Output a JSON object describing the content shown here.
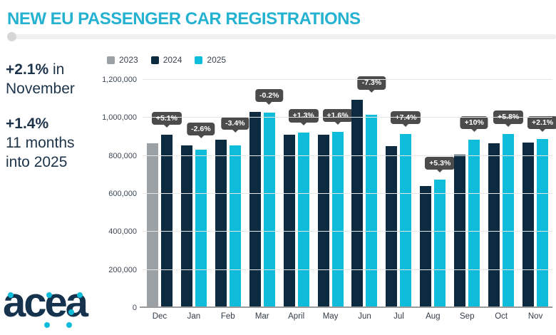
{
  "header": {
    "title": "NEW EU PASSENGER CAR REGISTRATIONS"
  },
  "sidebar": {
    "stats": [
      {
        "bold": "+2.1%",
        "after": " in",
        "line2": "November",
        "line3": ""
      },
      {
        "bold": "+1.4%",
        "after": "",
        "line2": "11 months",
        "line3": "into 2025"
      }
    ]
  },
  "logo": {
    "text": "acea"
  },
  "colors": {
    "title_accent": "#25b2d1",
    "navy": "#0d2b40",
    "cyan": "#0fbcd9",
    "gray": "#9aa0a4",
    "tooltip_bg": "#4b4b4b"
  },
  "chart_data": {
    "type": "bar",
    "title": "NEW EU PASSENGER CAR REGISTRATIONS",
    "categories": [
      "Dec",
      "Jan",
      "Feb",
      "Mar",
      "April",
      "May",
      "Jun",
      "Jul",
      "Aug",
      "Sep",
      "Oct",
      "Nov"
    ],
    "series": [
      {
        "name": "2023",
        "color": "#9aa0a4",
        "values": [
          867000,
          null,
          null,
          null,
          null,
          null,
          null,
          null,
          null,
          null,
          null,
          null
        ]
      },
      {
        "name": "2024",
        "color": "#0d2b40",
        "values": [
          911000,
          855000,
          884000,
          1030000,
          912000,
          911000,
          1096000,
          852000,
          640000,
          806000,
          866000,
          870000
        ]
      },
      {
        "name": "2025",
        "color": "#0fbcd9",
        "values": [
          null,
          833000,
          854000,
          1028000,
          924000,
          926000,
          1016000,
          915000,
          674000,
          887000,
          916000,
          888000
        ]
      }
    ],
    "change_labels": [
      "+5.1%",
      "-2.6%",
      "-3.4%",
      "-0.2%",
      "+1.3%",
      "+1.6%",
      "-7.3%",
      "+7.4%",
      "+5.3%",
      "+10%",
      "+5.8%",
      "+2.1%"
    ],
    "ylim": [
      0,
      1200000
    ],
    "yticks": [
      "0",
      "200,000",
      "400,000",
      "600,000",
      "800,000",
      "1,000,000",
      "1,200,000"
    ],
    "grid": true,
    "legend_position": "top-left",
    "xlabel": "",
    "ylabel": ""
  }
}
